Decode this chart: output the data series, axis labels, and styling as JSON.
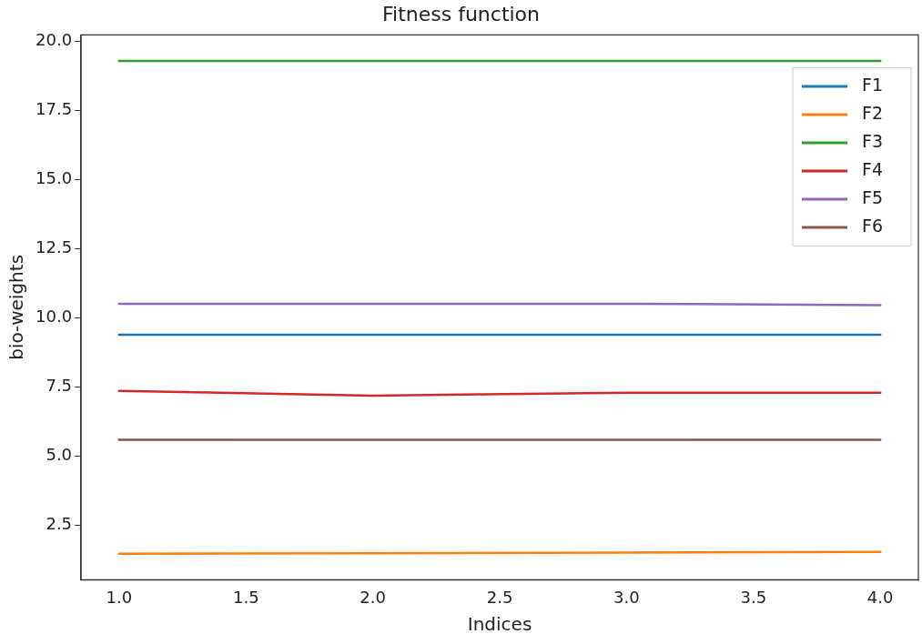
{
  "chart_data": {
    "type": "line",
    "title": "Fitness function",
    "xlabel": "Indices",
    "ylabel": "bio-weights",
    "x": [
      1,
      2,
      3,
      4
    ],
    "series": [
      {
        "name": "F1",
        "color": "#1f77b4",
        "values": [
          9.4,
          9.4,
          9.4,
          9.4
        ]
      },
      {
        "name": "F2",
        "color": "#ff7f0e",
        "values": [
          1.48,
          1.5,
          1.52,
          1.55
        ]
      },
      {
        "name": "F3",
        "color": "#2ca02c",
        "values": [
          19.3,
          19.3,
          19.3,
          19.3
        ]
      },
      {
        "name": "F4",
        "color": "#d62728",
        "values": [
          7.37,
          7.2,
          7.3,
          7.3
        ]
      },
      {
        "name": "F5",
        "color": "#9467bd",
        "values": [
          10.52,
          10.52,
          10.52,
          10.47
        ]
      },
      {
        "name": "F6",
        "color": "#8c564b",
        "values": [
          5.6,
          5.6,
          5.6,
          5.6
        ]
      }
    ],
    "xlim": [
      0.85,
      4.15
    ],
    "xticks": [
      {
        "value": 1,
        "label": "1.0"
      },
      {
        "value": 1.5,
        "label": "1.5"
      },
      {
        "value": 2,
        "label": "2.0"
      },
      {
        "value": 2.5,
        "label": "2.5"
      },
      {
        "value": 3,
        "label": "3.0"
      },
      {
        "value": 3.5,
        "label": "3.5"
      },
      {
        "value": 4,
        "label": "4.0"
      }
    ],
    "ylim": [
      0.54,
      20.24
    ],
    "yticks": [
      {
        "value": 2.5,
        "label": "2.5"
      },
      {
        "value": 5,
        "label": "5.0"
      },
      {
        "value": 7.5,
        "label": "7.5"
      },
      {
        "value": 10,
        "label": "10.0"
      },
      {
        "value": 12.5,
        "label": "12.5"
      },
      {
        "value": 15,
        "label": "15.0"
      },
      {
        "value": 17.5,
        "label": "17.5"
      },
      {
        "value": 20,
        "label": "20.0"
      }
    ],
    "legend": "top right"
  }
}
